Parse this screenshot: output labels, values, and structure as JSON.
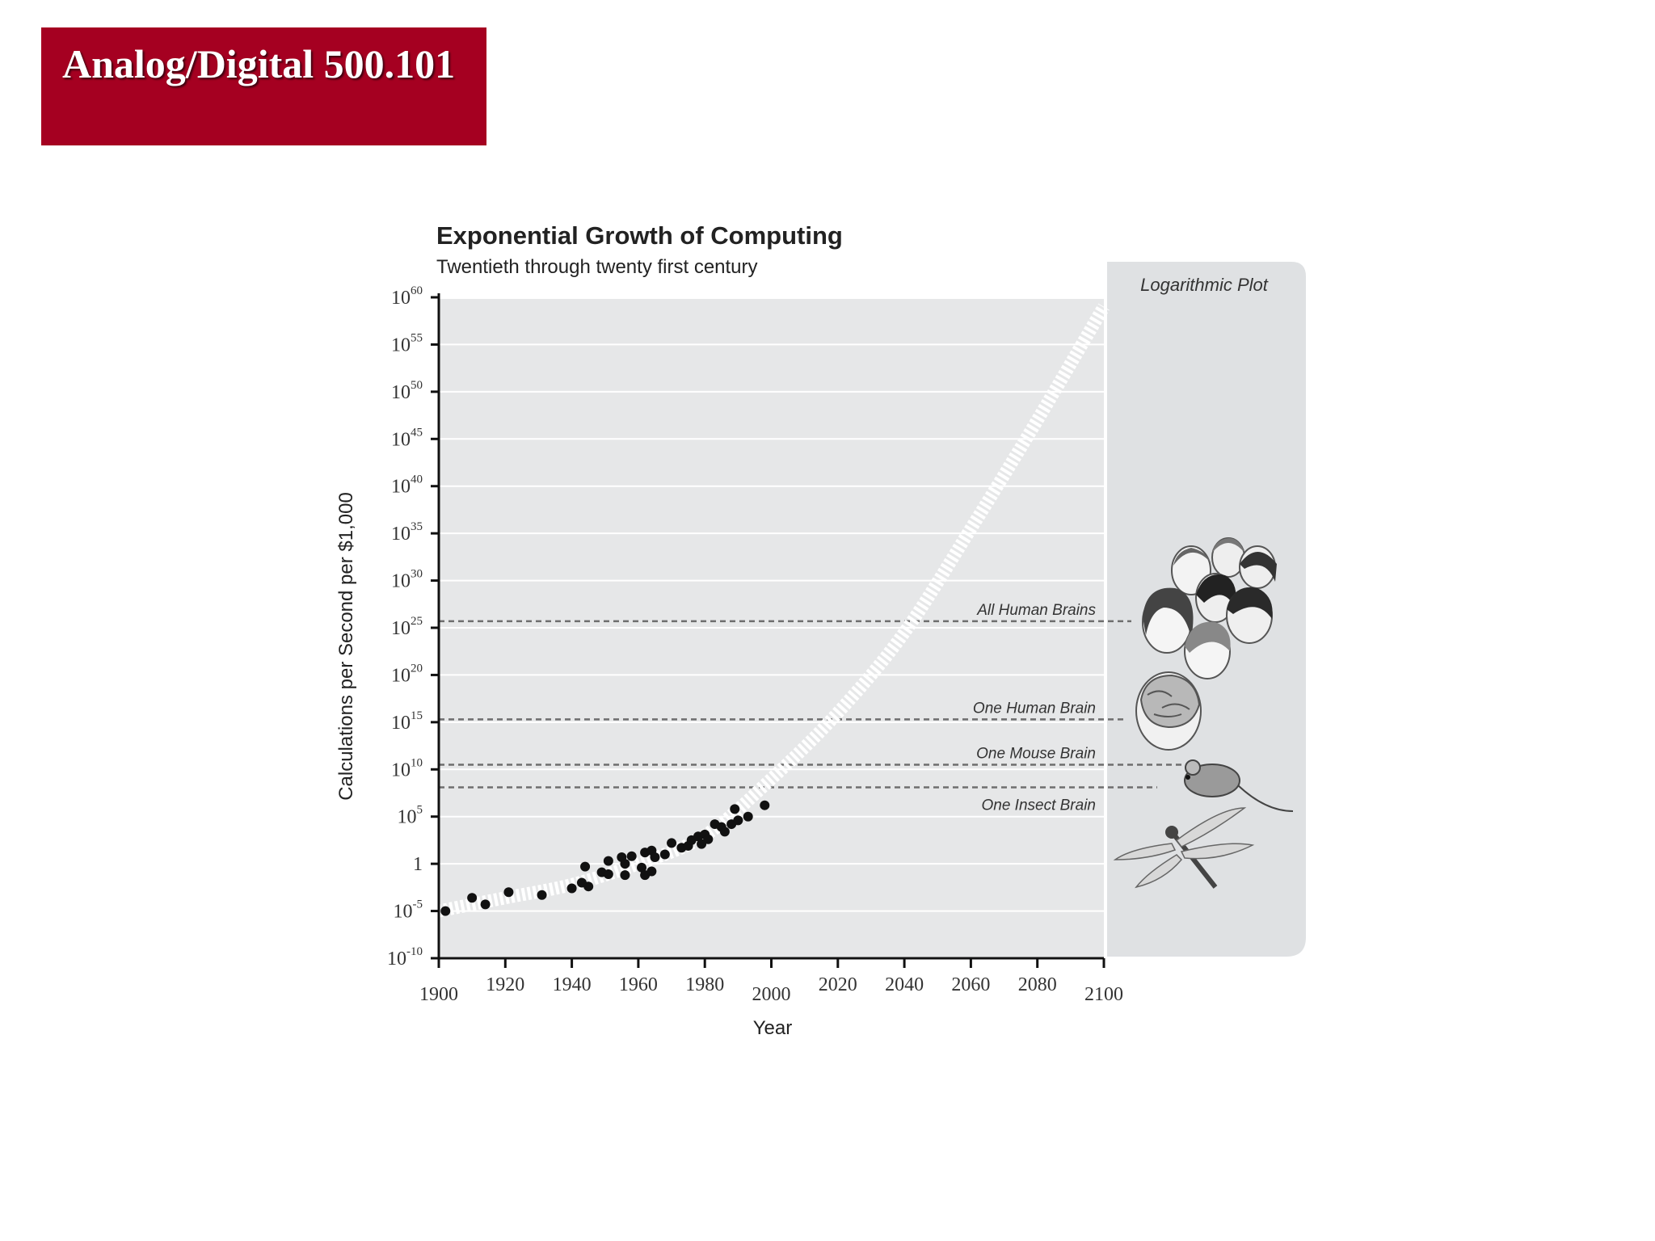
{
  "banner": {
    "title": "Analog/Digital 500.101",
    "color": "#a50021"
  },
  "chart_data": {
    "type": "scatter",
    "title": "Exponential Growth of Computing",
    "subtitle": "Twentieth through twenty first century",
    "xlabel": "Year",
    "ylabel": "Calculations per Second per $1,000",
    "xlim": [
      1900,
      2100
    ],
    "ylim_log10": [
      -10,
      60
    ],
    "x_ticks": [
      1900,
      1920,
      1940,
      1960,
      1980,
      2000,
      2020,
      2040,
      2060,
      2080,
      2100
    ],
    "y_ticks": [
      {
        "value": 60,
        "base": "10",
        "exp": "60"
      },
      {
        "value": 55,
        "base": "10",
        "exp": "55"
      },
      {
        "value": 50,
        "base": "10",
        "exp": "50"
      },
      {
        "value": 45,
        "base": "10",
        "exp": "45"
      },
      {
        "value": 40,
        "base": "10",
        "exp": "40"
      },
      {
        "value": 35,
        "base": "10",
        "exp": "35"
      },
      {
        "value": 30,
        "base": "10",
        "exp": "30"
      },
      {
        "value": 25,
        "base": "10",
        "exp": "25"
      },
      {
        "value": 20,
        "base": "10",
        "exp": "20"
      },
      {
        "value": 15,
        "base": "10",
        "exp": "15"
      },
      {
        "value": 10,
        "base": "10",
        "exp": "10"
      },
      {
        "value": 5,
        "base": "10",
        "exp": "5"
      },
      {
        "value": 0,
        "base": "1",
        "exp": ""
      },
      {
        "value": -5,
        "base": "10",
        "exp": "-5"
      },
      {
        "value": -10,
        "base": "10",
        "exp": "-10"
      }
    ],
    "points": [
      {
        "x": 1902,
        "y": -5.0
      },
      {
        "x": 1910,
        "y": -3.6
      },
      {
        "x": 1914,
        "y": -4.3
      },
      {
        "x": 1921,
        "y": -3.0
      },
      {
        "x": 1931,
        "y": -3.3
      },
      {
        "x": 1940,
        "y": -2.6
      },
      {
        "x": 1943,
        "y": -2.0
      },
      {
        "x": 1944,
        "y": -0.3
      },
      {
        "x": 1945,
        "y": -2.4
      },
      {
        "x": 1949,
        "y": -0.9
      },
      {
        "x": 1951,
        "y": -1.1
      },
      {
        "x": 1951,
        "y": 0.3
      },
      {
        "x": 1955,
        "y": 0.7
      },
      {
        "x": 1956,
        "y": -1.2
      },
      {
        "x": 1956,
        "y": 0.0
      },
      {
        "x": 1958,
        "y": 0.8
      },
      {
        "x": 1961,
        "y": -0.4
      },
      {
        "x": 1962,
        "y": 1.2
      },
      {
        "x": 1962,
        "y": -1.2
      },
      {
        "x": 1964,
        "y": 1.4
      },
      {
        "x": 1964,
        "y": -0.8
      },
      {
        "x": 1965,
        "y": 0.7
      },
      {
        "x": 1968,
        "y": 1.0
      },
      {
        "x": 1970,
        "y": 2.2
      },
      {
        "x": 1973,
        "y": 1.7
      },
      {
        "x": 1975,
        "y": 1.9
      },
      {
        "x": 1976,
        "y": 2.5
      },
      {
        "x": 1978,
        "y": 2.9
      },
      {
        "x": 1979,
        "y": 2.1
      },
      {
        "x": 1980,
        "y": 3.1
      },
      {
        "x": 1981,
        "y": 2.6
      },
      {
        "x": 1983,
        "y": 4.2
      },
      {
        "x": 1985,
        "y": 3.9
      },
      {
        "x": 1986,
        "y": 3.4
      },
      {
        "x": 1988,
        "y": 4.2
      },
      {
        "x": 1989,
        "y": 5.8
      },
      {
        "x": 1990,
        "y": 4.6
      },
      {
        "x": 1993,
        "y": 5.0
      },
      {
        "x": 1998,
        "y": 6.2
      }
    ],
    "trend_curve": [
      {
        "x": 1900,
        "y": -5.0
      },
      {
        "x": 1920,
        "y": -3.6
      },
      {
        "x": 1940,
        "y": -2.2
      },
      {
        "x": 1960,
        "y": 0.0
      },
      {
        "x": 1980,
        "y": 3.0
      },
      {
        "x": 2000,
        "y": 9.0
      },
      {
        "x": 2020,
        "y": 16.0
      },
      {
        "x": 2040,
        "y": 24.5
      },
      {
        "x": 2060,
        "y": 35.5
      },
      {
        "x": 2080,
        "y": 47.0
      },
      {
        "x": 2100,
        "y": 59.0
      }
    ],
    "reference_lines": [
      {
        "label": "All Human Brains",
        "y": 25.7
      },
      {
        "label": "One Human Brain",
        "y": 15.3
      },
      {
        "label": "One Mouse Brain",
        "y": 10.5
      },
      {
        "label": "One Insect Brain",
        "y": 8.1
      }
    ],
    "panel_label": "Logarithmic Plot",
    "grid": true
  }
}
